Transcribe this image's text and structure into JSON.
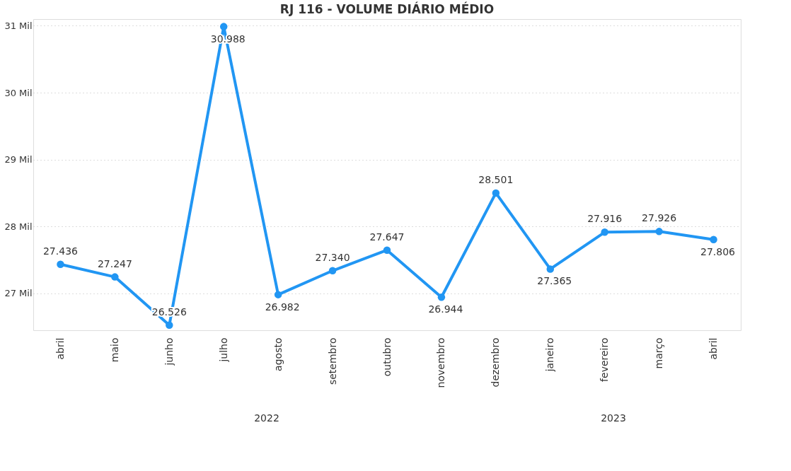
{
  "chart_data": {
    "type": "line",
    "title": "RJ 116 - VOLUME DIÁRIO MÉDIO",
    "categories": [
      "abril",
      "maio",
      "junho",
      "julho",
      "agosto",
      "setembro",
      "outubro",
      "novembro",
      "dezembro",
      "janeiro",
      "fevereiro",
      "março",
      "abril"
    ],
    "series": [
      {
        "color": "#2196f3",
        "values": [
          27.436,
          27.247,
          26.526,
          30.988,
          26.982,
          27.34,
          27.647,
          26.944,
          28.501,
          27.365,
          27.916,
          27.926,
          27.806
        ],
        "value_labels": [
          "27.436",
          "27.247",
          "26.526",
          "30.988",
          "26.982",
          "27.340",
          "27.647",
          "26.944",
          "28.501",
          "27.365",
          "27.916",
          "27.926",
          "27.806"
        ]
      }
    ],
    "ylim": [
      26.45,
      31.1
    ],
    "yticks": [
      {
        "value": 27,
        "label": "27 Mil"
      },
      {
        "value": 28,
        "label": "28 Mil"
      },
      {
        "value": 29,
        "label": "29 Mil"
      },
      {
        "value": 30,
        "label": "30 Mil"
      },
      {
        "value": 31,
        "label": "31 Mil"
      }
    ],
    "annotations": [
      "2022",
      "2023"
    ],
    "grid": "y",
    "marker": "circle",
    "line_style": "solid"
  }
}
